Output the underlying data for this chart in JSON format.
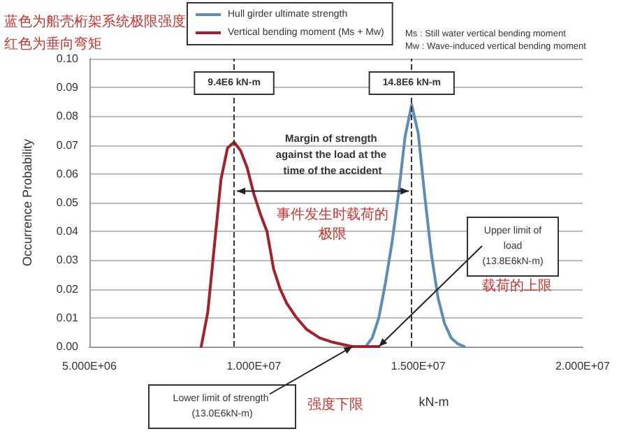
{
  "chart_data": {
    "type": "line",
    "ylabel": "Occurrence Probability",
    "xlabel": "kN-m",
    "xlim": [
      5000000,
      20000000
    ],
    "xticks": [
      {
        "value": 5000000,
        "label": "5.000E+06"
      },
      {
        "value": 10000000,
        "label": "1.000E+07"
      },
      {
        "value": 15000000,
        "label": "1.500E+07"
      },
      {
        "value": 20000000,
        "label": "2.000E+07"
      }
    ],
    "ylim": [
      0,
      0.1
    ],
    "yticks": [
      {
        "value": 0,
        "label": "0.00"
      },
      {
        "value": 0.01,
        "label": "0.01"
      },
      {
        "value": 0.02,
        "label": "0.02"
      },
      {
        "value": 0.03,
        "label": "0.03"
      },
      {
        "value": 0.04,
        "label": "0.04"
      },
      {
        "value": 0.05,
        "label": "0.05"
      },
      {
        "value": 0.06,
        "label": "0.06"
      },
      {
        "value": 0.07,
        "label": "0.07"
      },
      {
        "value": 0.08,
        "label": "0.08"
      },
      {
        "value": 0.09,
        "label": "0.09"
      },
      {
        "value": 0.1,
        "label": "0.10"
      }
    ],
    "grid": "y",
    "legend": "top",
    "marker": "none",
    "line_style": "solid",
    "series": [
      {
        "name": "Hull girder ultimate strength",
        "color": "#5b8db8",
        "x": [
          13400000,
          13600000,
          13800000,
          14000000,
          14200000,
          14400000,
          14600000,
          14800000,
          15000000,
          15200000,
          15400000,
          15600000,
          15800000,
          16000000,
          16200000,
          16400000
        ],
        "values": [
          0,
          0.003,
          0.01,
          0.022,
          0.036,
          0.053,
          0.073,
          0.084,
          0.074,
          0.052,
          0.032,
          0.017,
          0.008,
          0.003,
          0.001,
          0
        ]
      },
      {
        "name": "Vertical bending moment (Ms + Mw)",
        "color": "#a5202a",
        "x": [
          8400000,
          8600000,
          8800000,
          9000000,
          9200000,
          9400000,
          9600000,
          9800000,
          10000000,
          10200000,
          10400000,
          10600000,
          10800000,
          11000000,
          11300000,
          11600000,
          12000000,
          12400000,
          12800000,
          13000000,
          13800000
        ],
        "values": [
          0,
          0.012,
          0.035,
          0.058,
          0.069,
          0.071,
          0.068,
          0.062,
          0.053,
          0.046,
          0.04,
          0.027,
          0.02,
          0.015,
          0.01,
          0.006,
          0.003,
          0.0015,
          0.0005,
          0,
          0
        ]
      }
    ],
    "ref_lines": [
      {
        "axis": "x",
        "value": 9400000,
        "label": "9.4E6 kN-m",
        "color": "#333333",
        "line_style": "dashed"
      },
      {
        "axis": "x",
        "value": 14800000,
        "label": "14.8E6 kN-m",
        "color": "#333333",
        "line_style": "dashed"
      }
    ],
    "annotations": [
      "蓝色为船壳桁架系统极限强度",
      "红色为垂向弯矩",
      "Ms : Still water vertical bending moment",
      "Mw : Wave-induced vertical bending moment",
      "Margin of strength against the load at the time of the accident",
      "事件发生时载荷的极限",
      {
        "text": "Upper limit of load (13.8E6kN-m)",
        "x": 13800000,
        "y": 0
      },
      "载荷的上限",
      {
        "text": "Lower limit of strength (13.0E6kN-m)",
        "x": 13000000,
        "y": 0
      },
      "强度下限"
    ]
  }
}
